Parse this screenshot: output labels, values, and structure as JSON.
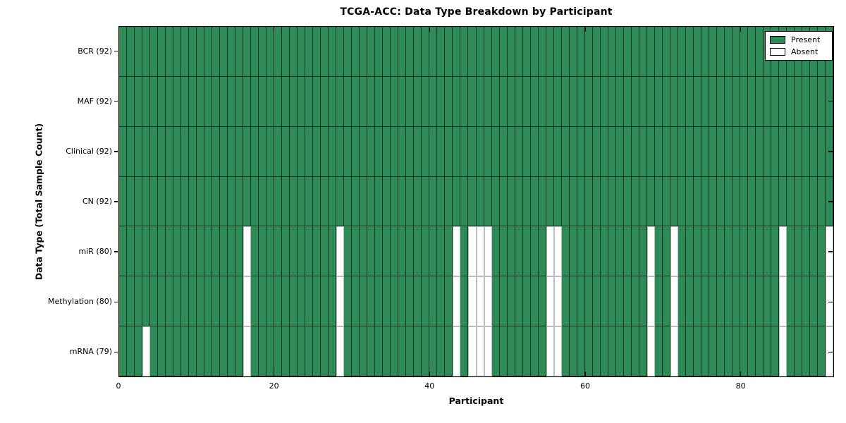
{
  "figure": {
    "title": "TCGA-ACC: Data Type Breakdown by Participant",
    "xlabel": "Participant",
    "ylabel": "Data Type (Total Sample Count)"
  },
  "legend": {
    "items": [
      {
        "label": "Present",
        "kind": "present"
      },
      {
        "label": "Absent",
        "kind": "absent"
      }
    ]
  },
  "chart_data": {
    "type": "heatmap",
    "title": "TCGA-ACC: Data Type Breakdown by Participant",
    "xlabel": "Participant",
    "ylabel": "Data Type (Total Sample Count)",
    "x_ticks": [
      0,
      20,
      40,
      60,
      80
    ],
    "x_range": [
      0,
      92
    ],
    "n_participants": 92,
    "present_color": "#2e8b57",
    "absent_color": "#ffffff",
    "legend_position": "upper right",
    "legend_entries": [
      "Present",
      "Absent"
    ],
    "rows": [
      {
        "label": "BCR (92)",
        "data_type": "BCR",
        "total_samples": 92,
        "absent_participants": []
      },
      {
        "label": "MAF (92)",
        "data_type": "MAF",
        "total_samples": 92,
        "absent_participants": []
      },
      {
        "label": "Clinical (92)",
        "data_type": "Clinical",
        "total_samples": 92,
        "absent_participants": []
      },
      {
        "label": "CN (92)",
        "data_type": "CN",
        "total_samples": 92,
        "absent_participants": []
      },
      {
        "label": "miR (80)",
        "data_type": "miR",
        "total_samples": 80,
        "absent_participants": [
          16,
          28,
          43,
          45,
          46,
          47,
          55,
          56,
          68,
          71,
          85,
          91
        ]
      },
      {
        "label": "Methylation (80)",
        "data_type": "Methylation",
        "total_samples": 80,
        "absent_participants": [
          16,
          28,
          43,
          45,
          46,
          47,
          55,
          56,
          68,
          71,
          85,
          91
        ]
      },
      {
        "label": "mRNA (79)",
        "data_type": "mRNA",
        "total_samples": 79,
        "absent_participants": [
          3,
          16,
          28,
          43,
          45,
          46,
          47,
          55,
          56,
          68,
          71,
          85,
          91
        ]
      }
    ]
  }
}
